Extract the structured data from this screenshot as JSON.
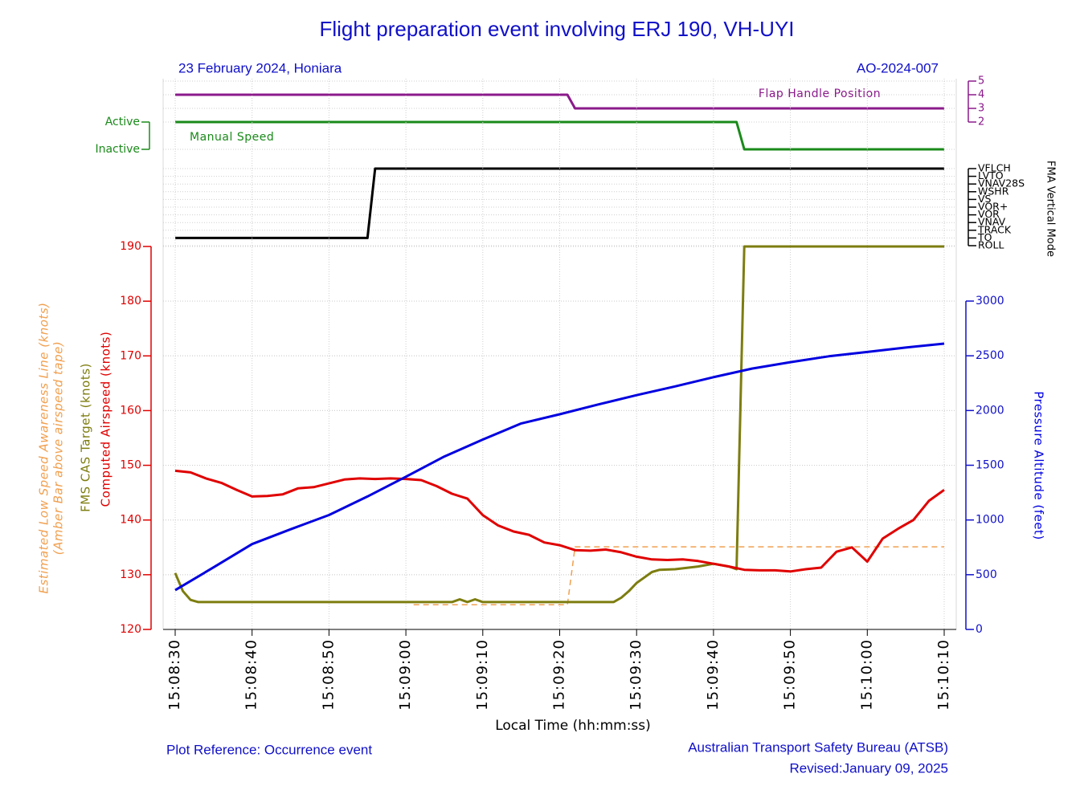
{
  "title": "Flight preparation event involving ERJ 190, VH-UYI",
  "date_location": "23 February 2024, Honiara",
  "report_id": "AO-2024-007",
  "plot_reference": "Plot Reference: Occurrence event",
  "publisher": "Australian Transport Safety Bureau (ATSB)",
  "revised": "Revised:January 09, 2025",
  "chart_data": [
    {
      "type": "line",
      "xlim": [
        "15:08:30",
        "15:10:10"
      ],
      "ylim": [
        2,
        5
      ],
      "yticks": [
        2,
        3,
        4,
        5
      ],
      "grid": true,
      "series": [
        {
          "name": "Flap Handle Position",
          "color": "#8b1a8b",
          "x": [
            "15:08:30",
            "15:09:21",
            "15:09:22",
            "15:10:10"
          ],
          "values": [
            4,
            4,
            3,
            3
          ]
        }
      ]
    },
    {
      "type": "line",
      "xlim": [
        "15:08:30",
        "15:10:10"
      ],
      "ylim": [
        0,
        1
      ],
      "yticks": [
        {
          "value": 0,
          "label": "Inactive"
        },
        {
          "value": 1,
          "label": "Active"
        }
      ],
      "grid": true,
      "series": [
        {
          "name": "Manual Speed",
          "color": "#1a8a1a",
          "x": [
            "15:08:30",
            "15:09:43",
            "15:09:44",
            "15:10:10"
          ],
          "values": [
            1,
            1,
            0,
            0
          ]
        }
      ]
    },
    {
      "type": "line",
      "xlim": [
        "15:08:30",
        "15:10:10"
      ],
      "ylabel": "FMA Vertical Mode",
      "ylim": [
        0,
        10
      ],
      "grid": true,
      "yticks": [
        {
          "value": 0,
          "label": "ROLL"
        },
        {
          "value": 1,
          "label": "TO"
        },
        {
          "value": 2,
          "label": "TRACK"
        },
        {
          "value": 3,
          "label": "VNAV"
        },
        {
          "value": 4,
          "label": "VOR"
        },
        {
          "value": 5,
          "label": "VOR+"
        },
        {
          "value": 6,
          "label": "VS"
        },
        {
          "value": 7,
          "label": "WSHR"
        },
        {
          "value": 8,
          "label": "VNAV28S"
        },
        {
          "value": 9,
          "label": "LVTO"
        },
        {
          "value": 10,
          "label": "VFLCH"
        }
      ],
      "series": [
        {
          "color": "#000000",
          "x": [
            "15:08:30",
            "15:08:55",
            "15:08:56",
            "15:10:10"
          ],
          "values": [
            1,
            1,
            10,
            10
          ]
        }
      ]
    },
    {
      "type": "line",
      "xlabel": "Local Time (hh:mm:ss)",
      "xlim": [
        "15:08:30",
        "15:10:10"
      ],
      "grid": true,
      "xticks": [
        "15:08:30",
        "15:08:40",
        "15:08:50",
        "15:09:00",
        "15:09:10",
        "15:09:20",
        "15:09:30",
        "15:09:40",
        "15:09:50",
        "15:10:00",
        "15:10:10"
      ],
      "ylim": [
        120,
        190
      ],
      "yticks": [
        120,
        130,
        140,
        150,
        160,
        170,
        180,
        190
      ],
      "y2lim": [
        0,
        3000
      ],
      "y2ticks": [
        0,
        500,
        1000,
        1500,
        2000,
        2500,
        3000
      ],
      "series": [
        {
          "label": "Estimated Low Speed Awareness Line (knots)",
          "sublabel": "(Amber Bar above airspeed tape)",
          "color": "#f0a050",
          "dashed": true,
          "x": [
            "15:09:01",
            "15:09:21",
            "15:09:22",
            "15:10:10"
          ],
          "values": [
            124.5,
            124.5,
            135.1,
            135.1
          ]
        },
        {
          "label": "FMS CAS Target (knots)",
          "color": "#7d7d10",
          "x": [
            "15:08:30",
            "15:08:31",
            "15:08:32",
            "15:08:33",
            "15:09:06",
            "15:09:07",
            "15:09:08",
            "15:09:09",
            "15:09:10",
            "15:09:27",
            "15:09:28",
            "15:09:29",
            "15:09:30",
            "15:09:31",
            "15:09:32",
            "15:09:33",
            "15:09:35",
            "15:09:38",
            "15:09:40",
            "15:09:42",
            "15:09:43",
            "15:09:44",
            "15:10:10"
          ],
          "values": [
            130.3,
            127,
            125.4,
            125,
            125,
            125.5,
            125,
            125.5,
            125,
            125,
            125.8,
            127,
            128.5,
            129.5,
            130.5,
            130.9,
            131,
            131.5,
            132,
            131.5,
            131,
            190,
            190
          ]
        },
        {
          "label": "Computed Airspeed (knots)",
          "color": "#e00000",
          "x": [
            "15:08:30",
            "15:08:32",
            "15:08:34",
            "15:08:36",
            "15:08:38",
            "15:08:40",
            "15:08:42",
            "15:08:44",
            "15:08:46",
            "15:08:48",
            "15:08:50",
            "15:08:52",
            "15:08:54",
            "15:08:56",
            "15:08:58",
            "15:09:00",
            "15:09:02",
            "15:09:04",
            "15:09:06",
            "15:09:08",
            "15:09:10",
            "15:09:12",
            "15:09:14",
            "15:09:16",
            "15:09:18",
            "15:09:20",
            "15:09:22",
            "15:09:24",
            "15:09:26",
            "15:09:28",
            "15:09:30",
            "15:09:32",
            "15:09:34",
            "15:09:36",
            "15:09:38",
            "15:09:40",
            "15:09:42",
            "15:09:44",
            "15:09:46",
            "15:09:48",
            "15:09:50",
            "15:09:52",
            "15:09:54",
            "15:09:56",
            "15:09:58",
            "15:10:00",
            "15:10:02",
            "15:10:04",
            "15:10:06",
            "15:10:08",
            "15:10:10"
          ],
          "values": [
            149.0,
            148.7,
            147.6,
            146.8,
            145.5,
            144.3,
            144.4,
            144.7,
            145.8,
            146.0,
            146.7,
            147.4,
            147.6,
            147.5,
            147.6,
            147.5,
            147.3,
            146.2,
            144.8,
            143.9,
            140.9,
            139.0,
            137.9,
            137.3,
            135.9,
            135.4,
            134.5,
            134.4,
            134.6,
            134.1,
            133.3,
            132.8,
            132.7,
            132.8,
            132.5,
            132.0,
            131.5,
            130.9,
            130.8,
            130.8,
            130.6,
            131.0,
            131.3,
            134.2,
            135.0,
            132.4,
            136.6,
            138.4,
            140.0,
            143.5,
            145.5
          ]
        },
        {
          "label": "Pressure Altitude (feet)",
          "color": "#0000e0",
          "axis": "y2",
          "x": [
            "15:08:30",
            "15:08:35",
            "15:08:40",
            "15:08:45",
            "15:08:50",
            "15:08:55",
            "15:09:00",
            "15:09:05",
            "15:09:10",
            "15:09:15",
            "15:09:20",
            "15:09:25",
            "15:09:30",
            "15:09:35",
            "15:09:40",
            "15:09:45",
            "15:09:50",
            "15:09:55",
            "15:10:00",
            "15:10:05",
            "15:10:10"
          ],
          "values": [
            359,
            568,
            780,
            915,
            1045,
            1215,
            1395,
            1580,
            1735,
            1882,
            1966,
            2055,
            2140,
            2220,
            2305,
            2383,
            2442,
            2495,
            2535,
            2575,
            2611
          ]
        }
      ]
    }
  ]
}
